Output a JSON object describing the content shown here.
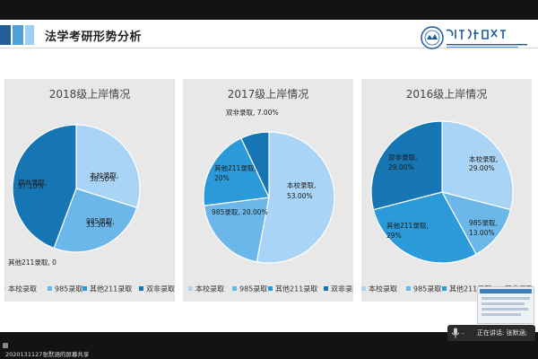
{
  "slide": {
    "title": "法学考研形势分析"
  },
  "status": {
    "share_text": "2020131127张默涵的屏幕共享",
    "speaker_text": "正在讲话: 张默涵;"
  },
  "legend_labels": [
    "本校录取",
    "985录取",
    "其他211录取",
    "双非录取"
  ],
  "colors": {
    "本校录取": "#a9d4f5",
    "985录取": "#6cb7ea",
    "其他211录取": "#2b9ad8",
    "双非录取": "#1676b3",
    "panel": "#e8e8e8",
    "slide_bg": "#ffffff",
    "screen_frame": "#121212"
  },
  "chart_data": [
    {
      "type": "pie",
      "title": "2018级上岸情况",
      "legend_position": "bottom",
      "categories": [
        "本校录取",
        "985录取",
        "其他211录取",
        "双非录取"
      ],
      "values": [
        38.5,
        33.3,
        0,
        57.1
      ],
      "labels": [
        "本校录取, 38.50%",
        "985录取, 33.30%",
        "其他211录取, 0",
        "双非录取, 57.10%"
      ]
    },
    {
      "type": "pie",
      "title": "2017级上岸情况",
      "legend_position": "bottom",
      "categories": [
        "本校录取",
        "985录取",
        "其他211录取",
        "双非录取"
      ],
      "values": [
        53,
        20,
        20,
        7
      ],
      "labels": [
        "本校录取, 53.00%",
        "985录取, 20.00%",
        "其他211录取, 20%",
        "双非录取, 7.00%"
      ]
    },
    {
      "type": "pie",
      "title": "2016级上岸情况",
      "legend_position": "bottom",
      "categories": [
        "本校录取",
        "985录取",
        "其他211录取",
        "双非录取"
      ],
      "values": [
        29,
        13,
        29,
        29
      ],
      "labels": [
        "本校录取, 29.00%",
        "985录取, 13.00%",
        "其他211录取, 29%",
        "双非录取, 29.00%"
      ]
    }
  ]
}
